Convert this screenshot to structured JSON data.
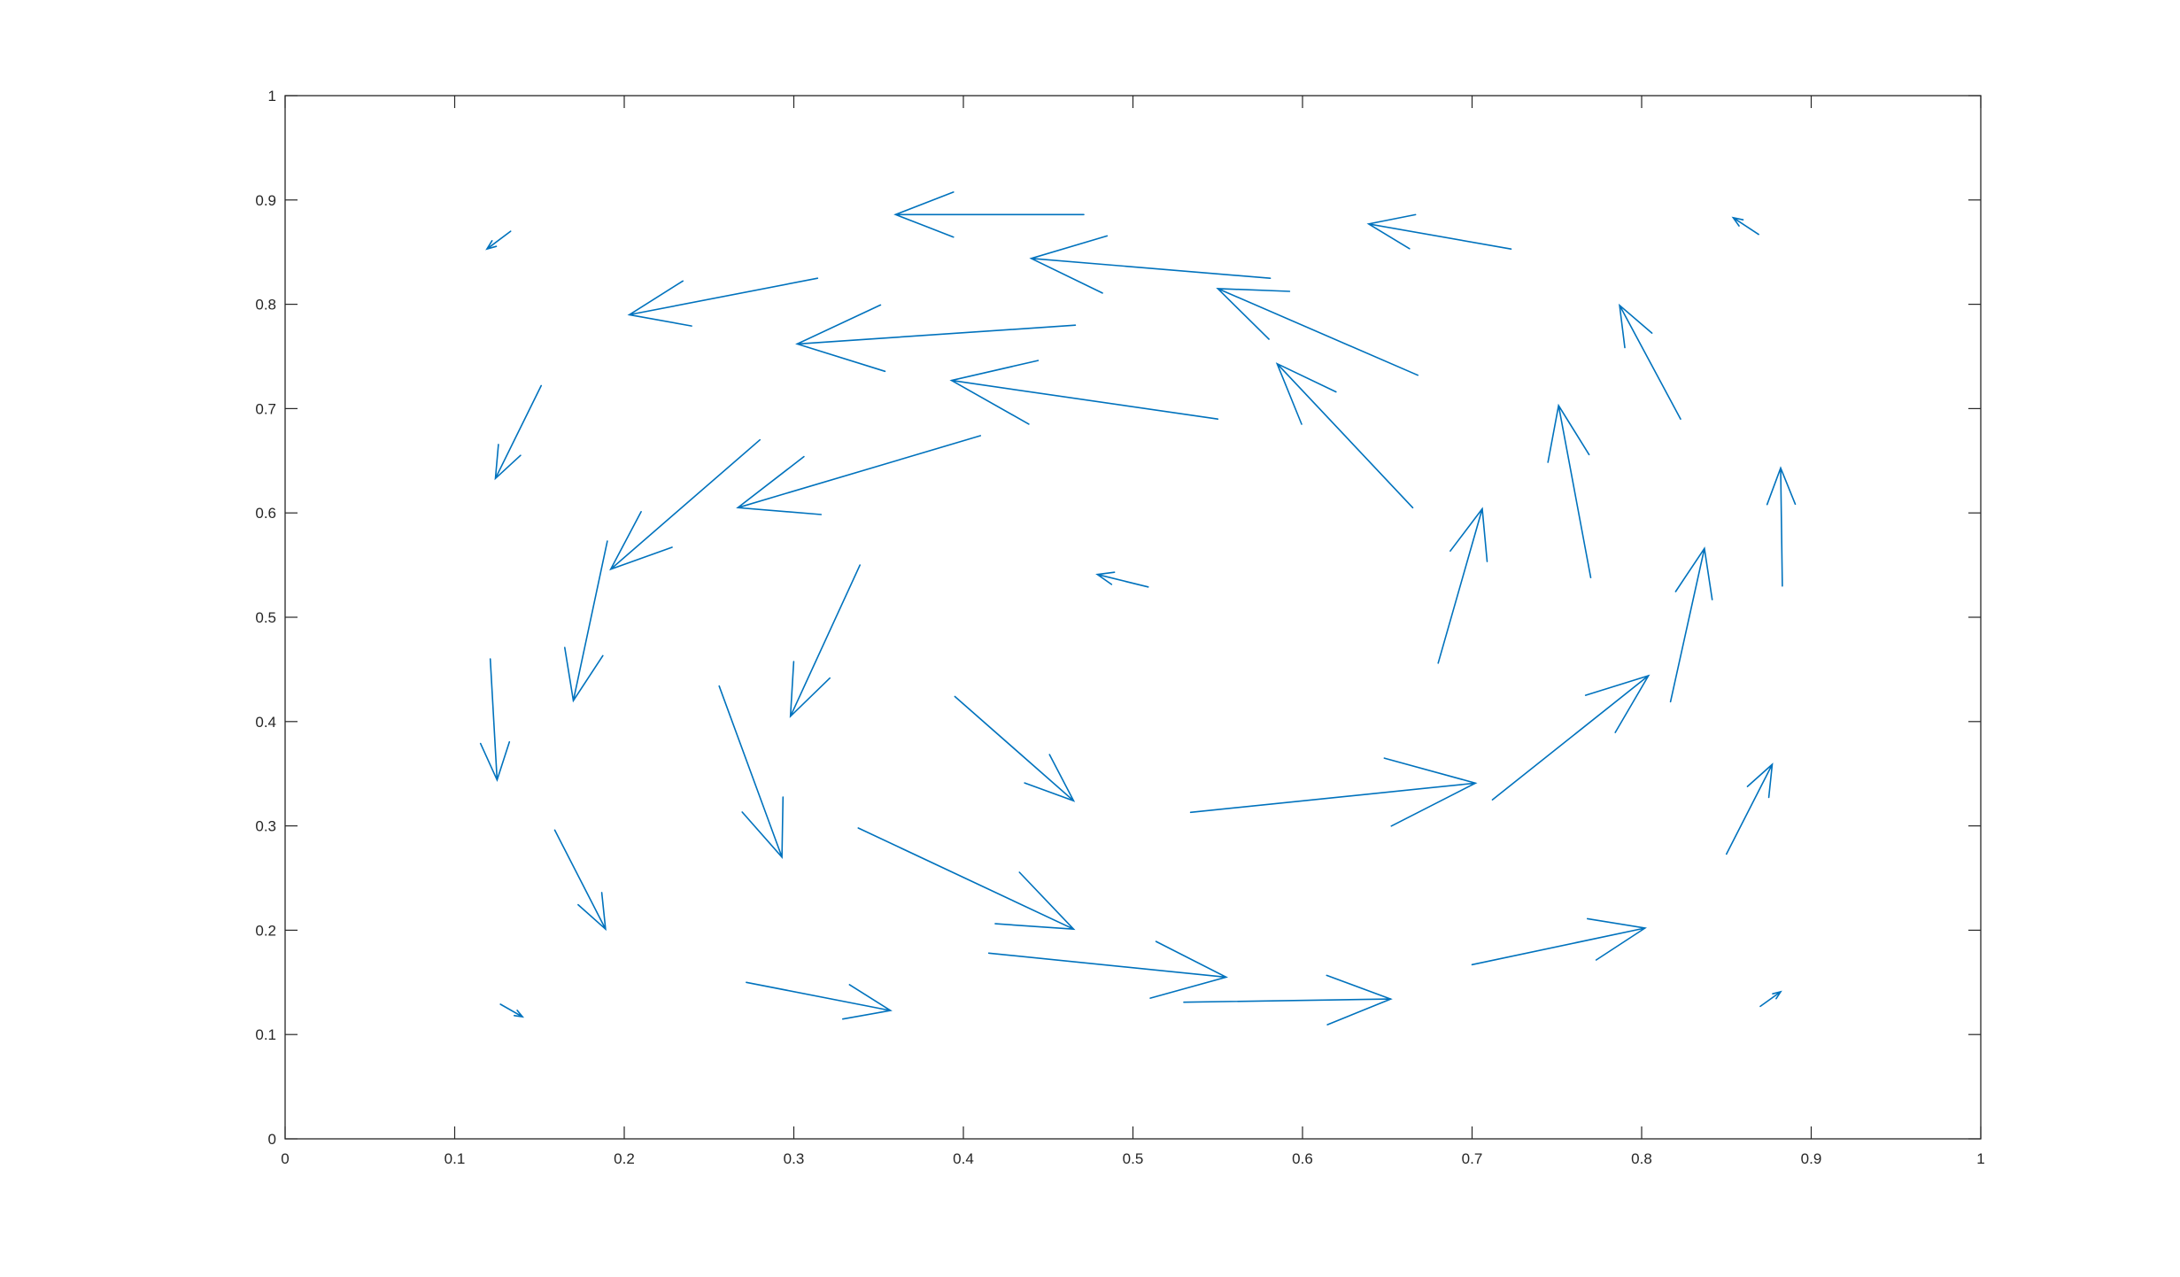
{
  "chart_data": {
    "type": "quiver",
    "title": "",
    "xlabel": "",
    "ylabel": "",
    "xlim": [
      0,
      1
    ],
    "ylim": [
      0,
      1
    ],
    "xticks": [
      "0",
      "0.1",
      "0.2",
      "0.3",
      "0.4",
      "0.5",
      "0.6",
      "0.7",
      "0.8",
      "0.9",
      "1"
    ],
    "yticks": [
      "0",
      "0.1",
      "0.2",
      "0.3",
      "0.4",
      "0.5",
      "0.6",
      "0.7",
      "0.8",
      "0.9",
      "1"
    ],
    "grid": false,
    "box": true,
    "arrow_color": "#0072BD",
    "axis_color": "#262626",
    "vectors": [
      {
        "x": 0.133,
        "y": 0.87,
        "u": -0.014,
        "v": -0.017
      },
      {
        "x": 0.314,
        "y": 0.825,
        "u": -0.111,
        "v": -0.035
      },
      {
        "x": 0.471,
        "y": 0.886,
        "u": -0.111,
        "v": 0.0
      },
      {
        "x": 0.581,
        "y": 0.825,
        "u": -0.141,
        "v": 0.019
      },
      {
        "x": 0.723,
        "y": 0.853,
        "u": -0.084,
        "v": 0.024
      },
      {
        "x": 0.869,
        "y": 0.867,
        "u": -0.015,
        "v": 0.016
      },
      {
        "x": 0.151,
        "y": 0.722,
        "u": -0.027,
        "v": -0.089
      },
      {
        "x": 0.466,
        "y": 0.78,
        "u": -0.164,
        "v": -0.018
      },
      {
        "x": 0.55,
        "y": 0.69,
        "u": -0.157,
        "v": 0.037
      },
      {
        "x": 0.668,
        "y": 0.732,
        "u": -0.118,
        "v": 0.083
      },
      {
        "x": 0.823,
        "y": 0.69,
        "u": -0.036,
        "v": 0.109
      },
      {
        "x": 0.28,
        "y": 0.67,
        "u": -0.088,
        "v": -0.124
      },
      {
        "x": 0.41,
        "y": 0.674,
        "u": -0.143,
        "v": -0.069
      },
      {
        "x": 0.665,
        "y": 0.605,
        "u": -0.08,
        "v": 0.138
      },
      {
        "x": 0.77,
        "y": 0.538,
        "u": -0.019,
        "v": 0.165
      },
      {
        "x": 0.19,
        "y": 0.573,
        "u": -0.02,
        "v": -0.153
      },
      {
        "x": 0.509,
        "y": 0.529,
        "u": -0.03,
        "v": 0.012
      },
      {
        "x": 0.68,
        "y": 0.456,
        "u": 0.026,
        "v": 0.148
      },
      {
        "x": 0.817,
        "y": 0.419,
        "u": 0.02,
        "v": 0.147
      },
      {
        "x": 0.883,
        "y": 0.53,
        "u": -0.001,
        "v": 0.113
      },
      {
        "x": 0.121,
        "y": 0.46,
        "u": 0.004,
        "v": -0.116
      },
      {
        "x": 0.339,
        "y": 0.55,
        "u": -0.041,
        "v": -0.145
      },
      {
        "x": 0.395,
        "y": 0.424,
        "u": 0.07,
        "v": -0.1
      },
      {
        "x": 0.256,
        "y": 0.434,
        "u": 0.037,
        "v": -0.164
      },
      {
        "x": 0.534,
        "y": 0.313,
        "u": 0.168,
        "v": 0.028
      },
      {
        "x": 0.712,
        "y": 0.325,
        "u": 0.092,
        "v": 0.119
      },
      {
        "x": 0.85,
        "y": 0.273,
        "u": 0.027,
        "v": 0.086
      },
      {
        "x": 0.159,
        "y": 0.296,
        "u": 0.03,
        "v": -0.095
      },
      {
        "x": 0.338,
        "y": 0.298,
        "u": 0.127,
        "v": -0.097
      },
      {
        "x": 0.415,
        "y": 0.178,
        "u": 0.14,
        "v": -0.023
      },
      {
        "x": 0.7,
        "y": 0.167,
        "u": 0.102,
        "v": 0.035
      },
      {
        "x": 0.272,
        "y": 0.15,
        "u": 0.085,
        "v": -0.027
      },
      {
        "x": 0.53,
        "y": 0.131,
        "u": 0.122,
        "v": 0.003
      },
      {
        "x": 0.127,
        "y": 0.129,
        "u": 0.013,
        "v": -0.012
      },
      {
        "x": 0.87,
        "y": 0.127,
        "u": 0.012,
        "v": 0.014
      }
    ]
  }
}
